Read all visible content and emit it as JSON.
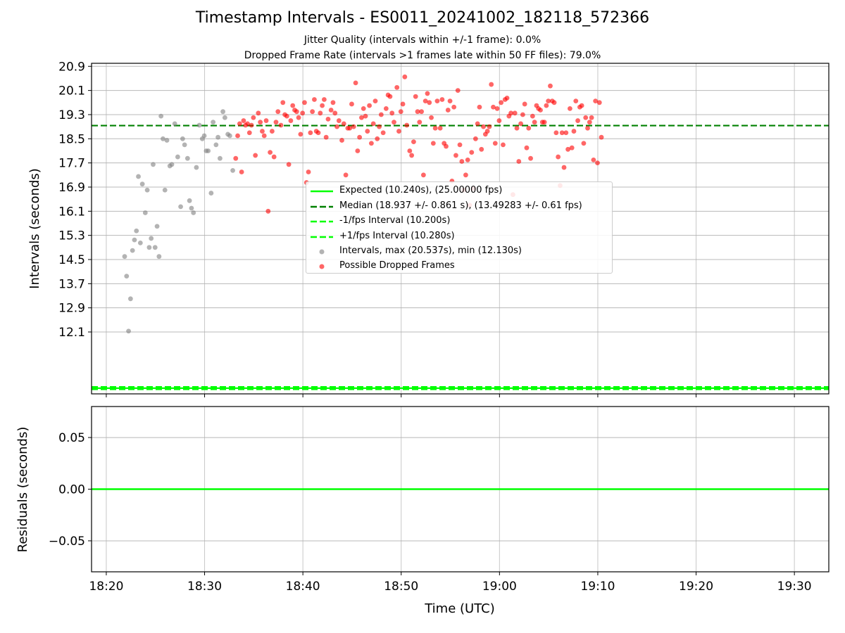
{
  "title": "Timestamp Intervals - ES0011_20241002_182118_572366",
  "subtitle_1": "Jitter Quality (intervals within +/-1 frame): 0.0%",
  "subtitle_2": "Dropped Frame Rate (intervals >1 frames late within 50 FF files): 79.0%",
  "colors": {
    "expected": "#00ff00",
    "median": "#008000",
    "intervals": "#808080",
    "dropped": "#ff0000",
    "grid": "#b0b0b0"
  },
  "chart_data": [
    {
      "type": "scatter",
      "ylabel": "Intervals (seconds)",
      "xlim": [
        "18:18:30",
        "19:33:30"
      ],
      "ylim": [
        10.05,
        21.0
      ],
      "x_ticks": [
        "18:20",
        "18:30",
        "18:40",
        "18:50",
        "19:00",
        "19:10",
        "19:20",
        "19:30"
      ],
      "y_ticks": [
        "12.1",
        "12.9",
        "13.7",
        "14.5",
        "15.3",
        "16.1",
        "16.9",
        "17.7",
        "18.5",
        "19.3",
        "20.1",
        "20.9"
      ],
      "grid": true,
      "legend_position": "center",
      "lines": [
        {
          "name": "Expected (10.240s), (25.00000 fps)",
          "y": 10.24,
          "style": "solid"
        },
        {
          "name": "Median (18.937 +/- 0.861 s), (13.49283 +/- 0.61 fps)",
          "y": 18.937,
          "style": "dashed"
        },
        {
          "name": "-1/fps Interval (10.200s)",
          "y": 10.2,
          "style": "dashed"
        },
        {
          "name": "+1/fps Interval (10.280s)",
          "y": 10.28,
          "style": "dashed"
        }
      ],
      "series": [
        {
          "name": "Intervals, max (20.537s), min (12.130s)",
          "points": [
            [
              "18:21:52",
              14.6
            ],
            [
              "18:22:04",
              13.95
            ],
            [
              "18:22:16",
              12.13
            ],
            [
              "18:22:28",
              13.2
            ],
            [
              "18:22:40",
              14.8
            ],
            [
              "18:22:52",
              15.15
            ],
            [
              "18:23:04",
              15.45
            ],
            [
              "18:23:16",
              17.25
            ],
            [
              "18:23:28",
              15.05
            ],
            [
              "18:23:40",
              17.0
            ],
            [
              "18:23:58",
              16.05
            ],
            [
              "18:24:10",
              16.8
            ],
            [
              "18:24:22",
              14.9
            ],
            [
              "18:24:34",
              15.2
            ],
            [
              "18:24:46",
              17.65
            ],
            [
              "18:24:58",
              14.9
            ],
            [
              "18:25:10",
              15.6
            ],
            [
              "18:25:22",
              14.6
            ],
            [
              "18:25:34",
              19.25
            ],
            [
              "18:25:46",
              18.5
            ],
            [
              "18:25:58",
              16.8
            ],
            [
              "18:26:10",
              18.45
            ],
            [
              "18:26:28",
              17.6
            ],
            [
              "18:26:40",
              17.65
            ],
            [
              "18:26:58",
              19.0
            ],
            [
              "18:27:16",
              17.9
            ],
            [
              "18:27:34",
              16.25
            ],
            [
              "18:27:46",
              18.5
            ],
            [
              "18:27:58",
              18.3
            ],
            [
              "18:28:16",
              17.85
            ],
            [
              "18:28:28",
              16.45
            ],
            [
              "18:28:40",
              16.2
            ],
            [
              "18:28:52",
              16.05
            ],
            [
              "18:29:10",
              17.55
            ],
            [
              "18:29:28",
              18.95
            ],
            [
              "18:29:46",
              18.5
            ],
            [
              "18:29:58",
              18.6
            ],
            [
              "18:30:10",
              18.1
            ],
            [
              "18:30:22",
              18.1
            ],
            [
              "18:30:40",
              16.7
            ],
            [
              "18:30:52",
              19.05
            ],
            [
              "18:31:10",
              18.3
            ],
            [
              "18:31:22",
              18.55
            ],
            [
              "18:31:34",
              17.85
            ],
            [
              "18:31:52",
              19.4
            ],
            [
              "18:32:04",
              19.2
            ],
            [
              "18:32:22",
              18.65
            ],
            [
              "18:32:34",
              18.6
            ],
            [
              "18:32:52",
              17.45
            ]
          ]
        },
        {
          "name": "Possible Dropped Frames",
          "points": [
            [
              "18:33:10",
              17.85
            ],
            [
              "18:33:22",
              18.6
            ],
            [
              "18:33:34",
              19.0
            ],
            [
              "18:33:46",
              17.4
            ],
            [
              "18:33:58",
              19.1
            ],
            [
              "18:34:10",
              18.95
            ],
            [
              "18:34:22",
              19.0
            ],
            [
              "18:34:34",
              18.7
            ],
            [
              "18:34:46",
              18.95
            ],
            [
              "18:34:58",
              19.2
            ],
            [
              "18:35:10",
              17.95
            ],
            [
              "18:35:28",
              19.35
            ],
            [
              "18:35:40",
              19.05
            ],
            [
              "18:35:52",
              18.75
            ],
            [
              "18:36:04",
              18.6
            ],
            [
              "18:36:16",
              19.1
            ],
            [
              "18:36:28",
              16.1
            ],
            [
              "18:36:40",
              18.05
            ],
            [
              "18:36:52",
              18.75
            ],
            [
              "18:37:04",
              17.9
            ],
            [
              "18:37:16",
              19.05
            ],
            [
              "18:37:28",
              19.4
            ],
            [
              "18:37:46",
              18.95
            ],
            [
              "18:37:58",
              19.7
            ],
            [
              "18:38:10",
              19.3
            ],
            [
              "18:38:22",
              19.25
            ],
            [
              "18:38:34",
              17.65
            ],
            [
              "18:38:46",
              19.1
            ],
            [
              "18:38:58",
              19.6
            ],
            [
              "18:39:10",
              19.45
            ],
            [
              "18:39:22",
              19.4
            ],
            [
              "18:39:34",
              19.2
            ],
            [
              "18:39:46",
              18.65
            ],
            [
              "18:39:58",
              19.35
            ],
            [
              "18:40:10",
              19.7
            ],
            [
              "18:40:22",
              17.05
            ],
            [
              "18:40:34",
              17.4
            ],
            [
              "18:40:46",
              18.7
            ],
            [
              "18:40:58",
              19.4
            ],
            [
              "18:41:10",
              19.8
            ],
            [
              "18:41:22",
              18.75
            ],
            [
              "18:41:34",
              18.7
            ],
            [
              "18:41:46",
              19.35
            ],
            [
              "18:41:58",
              19.6
            ],
            [
              "18:42:10",
              19.8
            ],
            [
              "18:42:22",
              18.55
            ],
            [
              "18:42:34",
              19.15
            ],
            [
              "18:42:52",
              19.45
            ],
            [
              "18:43:04",
              19.7
            ],
            [
              "18:43:16",
              19.35
            ],
            [
              "18:43:28",
              18.9
            ],
            [
              "18:43:40",
              19.1
            ],
            [
              "18:43:58",
              18.45
            ],
            [
              "18:44:10",
              19.0
            ],
            [
              "18:44:22",
              17.3
            ],
            [
              "18:44:34",
              18.85
            ],
            [
              "18:44:46",
              18.85
            ],
            [
              "18:44:58",
              19.65
            ],
            [
              "18:45:10",
              18.9
            ],
            [
              "18:45:22",
              20.35
            ],
            [
              "18:45:34",
              18.1
            ],
            [
              "18:45:46",
              18.55
            ],
            [
              "18:45:58",
              19.2
            ],
            [
              "18:46:10",
              19.5
            ],
            [
              "18:46:22",
              19.25
            ],
            [
              "18:46:34",
              18.75
            ],
            [
              "18:46:46",
              19.6
            ],
            [
              "18:46:58",
              18.35
            ],
            [
              "18:47:10",
              19.0
            ],
            [
              "18:47:22",
              19.75
            ],
            [
              "18:47:34",
              18.5
            ],
            [
              "18:47:46",
              18.9
            ],
            [
              "18:47:58",
              19.3
            ],
            [
              "18:48:10",
              18.7
            ],
            [
              "18:48:28",
              19.5
            ],
            [
              "18:48:40",
              19.95
            ],
            [
              "18:48:52",
              19.9
            ],
            [
              "18:49:04",
              19.35
            ],
            [
              "18:49:16",
              19.05
            ],
            [
              "18:49:34",
              20.2
            ],
            [
              "18:49:46",
              18.75
            ],
            [
              "18:49:58",
              19.4
            ],
            [
              "18:50:10",
              19.65
            ],
            [
              "18:50:22",
              20.55
            ],
            [
              "18:50:34",
              18.95
            ],
            [
              "18:50:52",
              18.1
            ],
            [
              "18:51:04",
              17.95
            ],
            [
              "18:51:16",
              18.4
            ],
            [
              "18:51:28",
              19.9
            ],
            [
              "18:51:40",
              19.4
            ],
            [
              "18:51:52",
              19.05
            ],
            [
              "18:52:04",
              19.4
            ],
            [
              "18:52:16",
              17.3
            ],
            [
              "18:52:28",
              19.75
            ],
            [
              "18:52:40",
              20.0
            ],
            [
              "18:52:52",
              19.7
            ],
            [
              "18:53:04",
              19.2
            ],
            [
              "18:53:16",
              18.35
            ],
            [
              "18:53:28",
              18.85
            ],
            [
              "18:53:40",
              19.75
            ],
            [
              "18:53:58",
              18.85
            ],
            [
              "18:54:10",
              19.8
            ],
            [
              "18:54:22",
              18.35
            ],
            [
              "18:54:34",
              18.25
            ],
            [
              "18:54:46",
              19.45
            ],
            [
              "18:54:58",
              19.75
            ],
            [
              "18:55:10",
              17.1
            ],
            [
              "18:55:22",
              19.55
            ],
            [
              "18:55:34",
              17.95
            ],
            [
              "18:55:46",
              20.1
            ],
            [
              "18:55:58",
              18.3
            ],
            [
              "18:56:10",
              17.75
            ],
            [
              "18:56:22",
              16.8
            ],
            [
              "18:56:34",
              17.3
            ],
            [
              "18:56:46",
              17.8
            ],
            [
              "18:56:58",
              16.3
            ],
            [
              "18:57:10",
              18.05
            ],
            [
              "18:57:22",
              16.85
            ],
            [
              "18:57:34",
              18.5
            ],
            [
              "18:57:46",
              19.0
            ],
            [
              "18:57:58",
              19.55
            ],
            [
              "18:58:10",
              18.15
            ],
            [
              "18:58:22",
              18.9
            ],
            [
              "18:58:34",
              18.65
            ],
            [
              "18:58:46",
              18.75
            ],
            [
              "18:58:58",
              18.9
            ],
            [
              "18:59:10",
              20.3
            ],
            [
              "18:59:22",
              19.55
            ],
            [
              "18:59:34",
              18.35
            ],
            [
              "18:59:46",
              19.5
            ],
            [
              "18:59:58",
              19.1
            ],
            [
              "19:00:10",
              19.7
            ],
            [
              "19:00:22",
              18.3
            ],
            [
              "19:00:34",
              19.8
            ],
            [
              "19:00:46",
              19.85
            ],
            [
              "19:00:58",
              19.25
            ],
            [
              "19:01:10",
              19.35
            ],
            [
              "19:01:22",
              16.65
            ],
            [
              "19:01:34",
              19.35
            ],
            [
              "19:01:46",
              18.85
            ],
            [
              "19:01:58",
              17.75
            ],
            [
              "19:02:10",
              19.0
            ],
            [
              "19:02:22",
              19.3
            ],
            [
              "19:02:34",
              19.65
            ],
            [
              "19:02:46",
              18.2
            ],
            [
              "19:02:58",
              18.85
            ],
            [
              "19:03:10",
              17.85
            ],
            [
              "19:03:22",
              19.25
            ],
            [
              "19:03:34",
              19.05
            ],
            [
              "19:03:46",
              19.6
            ],
            [
              "19:03:58",
              19.5
            ],
            [
              "19:04:10",
              19.45
            ],
            [
              "19:04:22",
              19.05
            ],
            [
              "19:04:34",
              19.05
            ],
            [
              "19:04:46",
              19.6
            ],
            [
              "19:04:58",
              19.75
            ],
            [
              "19:05:10",
              20.25
            ],
            [
              "19:05:22",
              19.75
            ],
            [
              "19:05:34",
              19.7
            ],
            [
              "19:05:46",
              18.7
            ],
            [
              "19:05:58",
              17.9
            ],
            [
              "19:06:10",
              16.95
            ],
            [
              "19:06:22",
              18.7
            ],
            [
              "19:06:34",
              17.55
            ],
            [
              "19:06:46",
              18.7
            ],
            [
              "19:06:58",
              18.15
            ],
            [
              "19:07:10",
              19.5
            ],
            [
              "19:07:22",
              18.2
            ],
            [
              "19:07:34",
              18.75
            ],
            [
              "19:07:46",
              19.75
            ],
            [
              "19:07:58",
              19.1
            ],
            [
              "19:08:10",
              19.55
            ],
            [
              "19:08:22",
              19.6
            ],
            [
              "19:08:34",
              18.35
            ],
            [
              "19:08:46",
              19.2
            ],
            [
              "19:08:58",
              18.85
            ],
            [
              "19:09:10",
              19.05
            ],
            [
              "19:09:22",
              19.2
            ],
            [
              "19:09:34",
              17.8
            ],
            [
              "19:09:46",
              19.75
            ],
            [
              "19:09:58",
              17.7
            ],
            [
              "19:10:10",
              19.7
            ],
            [
              "19:10:22",
              18.55
            ]
          ]
        }
      ]
    },
    {
      "type": "line",
      "ylabel": "Residuals (seconds)",
      "xlabel": "Time (UTC)",
      "xlim": [
        "18:18:30",
        "19:33:30"
      ],
      "ylim": [
        -0.08,
        0.08
      ],
      "x_ticks": [
        "18:20",
        "18:30",
        "18:40",
        "18:50",
        "19:00",
        "19:10",
        "19:20",
        "19:30"
      ],
      "y_ticks": [
        "0.05",
        "0.00",
        "−0.05"
      ],
      "y_tick_values": [
        0.05,
        0.0,
        -0.05
      ],
      "grid": true,
      "series": [
        {
          "residual": 0.0
        }
      ]
    }
  ]
}
